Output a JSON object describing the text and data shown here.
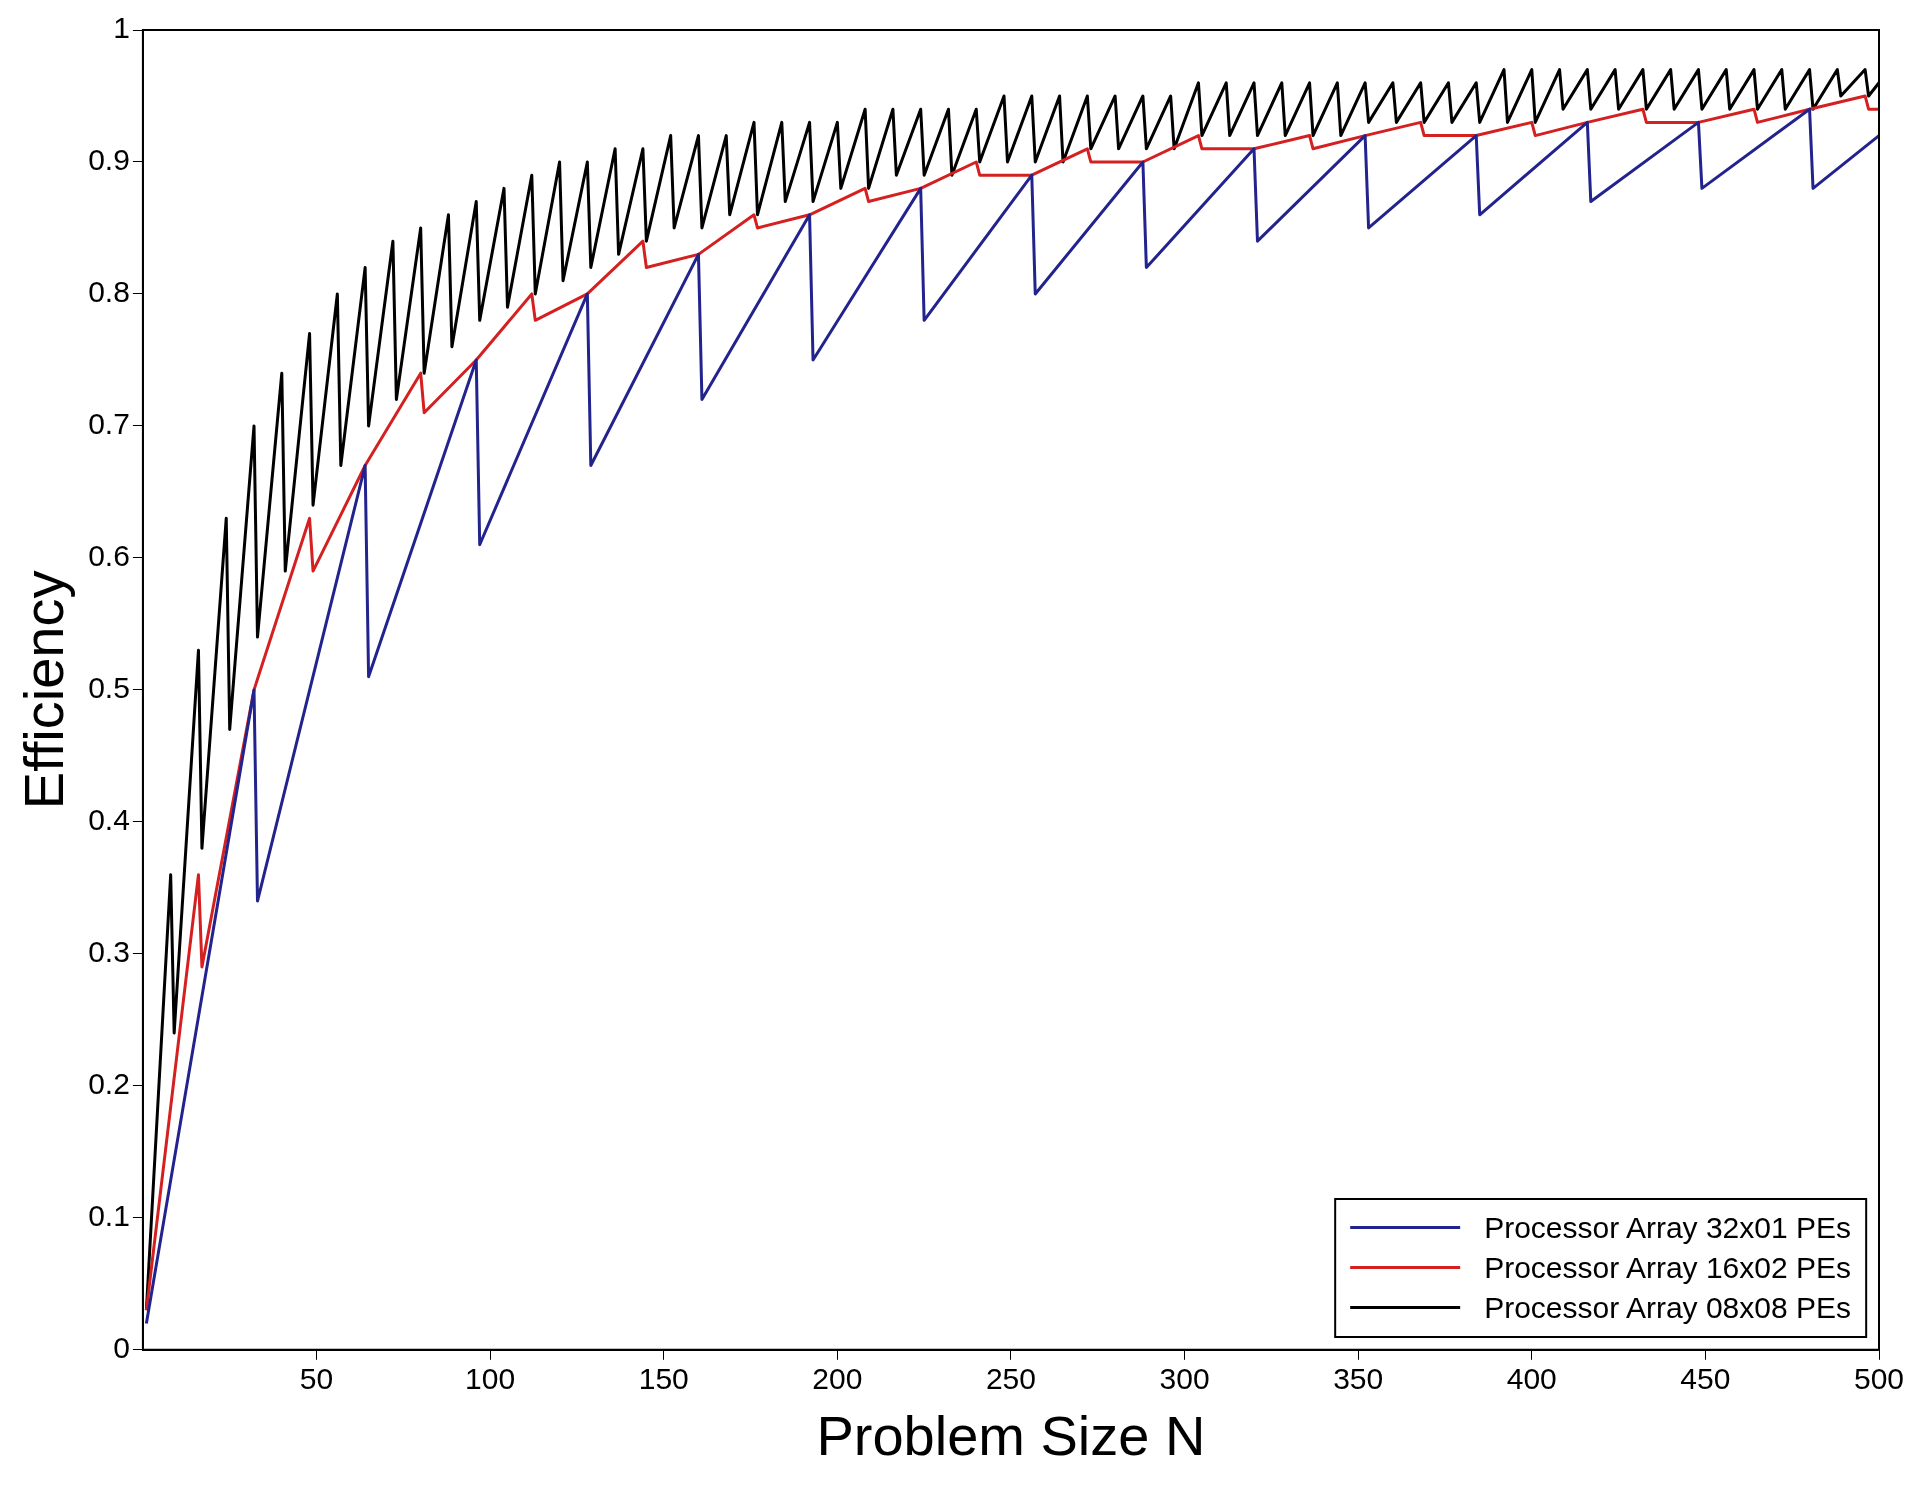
{
  "chart_data": {
    "type": "line",
    "xlabel": "Problem Size N",
    "ylabel": "Efficiency",
    "xlim": [
      0,
      500
    ],
    "xticks": [
      50,
      100,
      150,
      200,
      250,
      300,
      350,
      400,
      450,
      500
    ],
    "ylim": [
      0,
      1
    ],
    "yticks": [
      0,
      0.1,
      0.2,
      0.3,
      0.4,
      0.5,
      0.6,
      0.7,
      0.8,
      0.9,
      1
    ],
    "grid": false,
    "legend": "bottom right",
    "marker": "none",
    "line_style": "solid",
    "series": [
      {
        "name": "Processor Array 32x01 PEs",
        "color": "#23238e",
        "x": [
          1,
          32,
          33,
          64,
          65,
          96,
          97,
          128,
          129,
          160,
          161,
          192,
          193,
          224,
          225,
          256,
          257,
          288,
          289,
          320,
          321,
          352,
          353,
          384,
          385,
          416,
          417,
          448,
          449,
          480,
          481,
          500
        ],
        "values": [
          0.02,
          0.5,
          0.34,
          0.67,
          0.51,
          0.75,
          0.61,
          0.8,
          0.67,
          0.83,
          0.72,
          0.86,
          0.75,
          0.88,
          0.78,
          0.89,
          0.8,
          0.9,
          0.82,
          0.91,
          0.84,
          0.92,
          0.85,
          0.92,
          0.86,
          0.93,
          0.87,
          0.93,
          0.88,
          0.94,
          0.88,
          0.92
        ]
      },
      {
        "name": "Processor Array 16x02 PEs",
        "color": "#d42020",
        "x": [
          1,
          16,
          17,
          32,
          48,
          49,
          64,
          80,
          81,
          96,
          112,
          113,
          128,
          144,
          145,
          160,
          176,
          177,
          192,
          208,
          209,
          224,
          240,
          241,
          256,
          272,
          273,
          288,
          304,
          305,
          320,
          336,
          337,
          352,
          368,
          369,
          384,
          400,
          401,
          416,
          432,
          433,
          448,
          464,
          465,
          480,
          496,
          497,
          500
        ],
        "values": [
          0.03,
          0.36,
          0.29,
          0.5,
          0.63,
          0.59,
          0.67,
          0.74,
          0.71,
          0.75,
          0.8,
          0.78,
          0.8,
          0.84,
          0.82,
          0.83,
          0.86,
          0.85,
          0.86,
          0.88,
          0.87,
          0.88,
          0.9,
          0.89,
          0.89,
          0.91,
          0.9,
          0.9,
          0.92,
          0.91,
          0.91,
          0.92,
          0.91,
          0.92,
          0.93,
          0.92,
          0.92,
          0.93,
          0.92,
          0.93,
          0.94,
          0.93,
          0.93,
          0.94,
          0.93,
          0.94,
          0.95,
          0.94,
          0.94
        ]
      },
      {
        "name": "Processor Array 08x08 PEs",
        "color": "#000000",
        "x": [
          1,
          8,
          9,
          16,
          17,
          24,
          25,
          32,
          33,
          40,
          41,
          48,
          49,
          56,
          57,
          64,
          65,
          72,
          73,
          80,
          81,
          88,
          89,
          96,
          97,
          104,
          105,
          112,
          113,
          120,
          121,
          128,
          129,
          136,
          137,
          144,
          145,
          152,
          153,
          160,
          161,
          168,
          169,
          176,
          177,
          184,
          185,
          192,
          193,
          200,
          201,
          208,
          209,
          216,
          217,
          224,
          225,
          232,
          233,
          240,
          241,
          248,
          249,
          256,
          257,
          264,
          265,
          272,
          273,
          280,
          281,
          288,
          289,
          296,
          297,
          304,
          305,
          312,
          313,
          320,
          321,
          328,
          329,
          336,
          337,
          344,
          345,
          352,
          353,
          360,
          361,
          368,
          369,
          376,
          377,
          384,
          385,
          392,
          393,
          400,
          401,
          408,
          409,
          416,
          417,
          424,
          425,
          432,
          433,
          440,
          441,
          448,
          449,
          456,
          457,
          464,
          465,
          472,
          473,
          480,
          481,
          488,
          489,
          496,
          497,
          500
        ],
        "values": [
          0.03,
          0.36,
          0.24,
          0.53,
          0.38,
          0.63,
          0.47,
          0.7,
          0.54,
          0.74,
          0.59,
          0.77,
          0.64,
          0.8,
          0.67,
          0.82,
          0.7,
          0.84,
          0.72,
          0.85,
          0.74,
          0.86,
          0.76,
          0.87,
          0.78,
          0.88,
          0.79,
          0.89,
          0.8,
          0.9,
          0.81,
          0.9,
          0.82,
          0.91,
          0.83,
          0.91,
          0.84,
          0.92,
          0.85,
          0.92,
          0.85,
          0.92,
          0.86,
          0.93,
          0.86,
          0.93,
          0.87,
          0.93,
          0.87,
          0.93,
          0.88,
          0.94,
          0.88,
          0.94,
          0.89,
          0.94,
          0.89,
          0.94,
          0.89,
          0.94,
          0.9,
          0.95,
          0.9,
          0.95,
          0.9,
          0.95,
          0.9,
          0.95,
          0.91,
          0.95,
          0.91,
          0.95,
          0.91,
          0.95,
          0.91,
          0.96,
          0.92,
          0.96,
          0.92,
          0.96,
          0.92,
          0.96,
          0.92,
          0.96,
          0.92,
          0.96,
          0.92,
          0.96,
          0.93,
          0.96,
          0.93,
          0.96,
          0.93,
          0.96,
          0.93,
          0.96,
          0.93,
          0.97,
          0.93,
          0.97,
          0.93,
          0.97,
          0.94,
          0.97,
          0.94,
          0.97,
          0.94,
          0.97,
          0.94,
          0.97,
          0.94,
          0.97,
          0.94,
          0.97,
          0.94,
          0.97,
          0.94,
          0.97,
          0.94,
          0.97,
          0.94,
          0.97,
          0.95,
          0.97,
          0.95,
          0.96
        ]
      }
    ]
  }
}
